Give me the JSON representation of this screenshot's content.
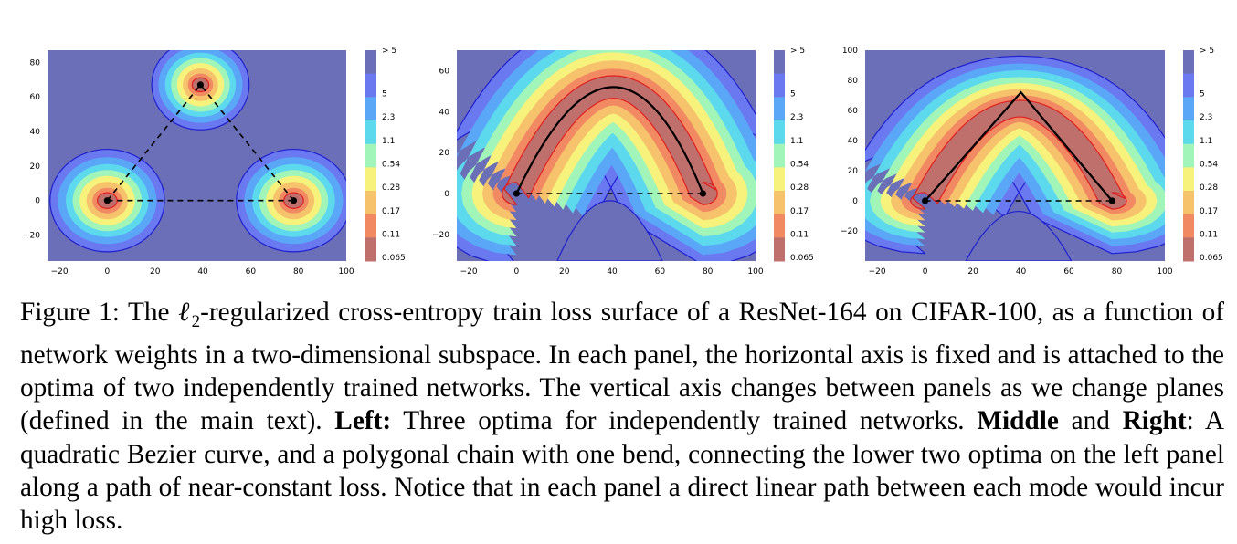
{
  "figure": {
    "caption": {
      "label": "Figure 1:",
      "part1": "The",
      "ell": "ℓ",
      "sub": "2",
      "part2": "-regularized cross-entropy train loss surface of a ResNet-164 on CIFAR-100, as a function of network weights in a two-dimensional subspace. In each panel, the horizontal axis is fixed and is attached to the optima of two independently trained networks. The vertical axis changes between panels as we change planes (defined in the main text).",
      "left_label": "Left:",
      "left_text": "Three optima for independently trained networks.",
      "middle_label": "Middle",
      "and": "and",
      "right_label": "Right",
      "right_text": ": A quadratic Bezier curve, and a polygonal chain with one bend, connecting the lower two optima on the left panel along a path of near-constant loss. Notice that in each panel a direct linear path between each mode would incur high loss."
    }
  },
  "chart_data": [
    {
      "type": "heatmap",
      "panel": "left",
      "xticks": [
        -20,
        0,
        20,
        40,
        60,
        80,
        100
      ],
      "yticks": [
        -20,
        0,
        20,
        40,
        60,
        80
      ],
      "xlim": [
        -25,
        100
      ],
      "ylim": [
        -35,
        87
      ],
      "colorbar_labels": [
        "> 5",
        "5",
        "2.3",
        "1.1",
        "0.54",
        "0.28",
        "0.17",
        "0.11",
        "0.065"
      ],
      "optima": [
        [
          0,
          0
        ],
        [
          78,
          0
        ],
        [
          39,
          67
        ]
      ],
      "paths": [
        {
          "style": "dashed",
          "points": [
            [
              0,
              0
            ],
            [
              78,
              0
            ]
          ]
        },
        {
          "style": "dashed",
          "points": [
            [
              0,
              0
            ],
            [
              39,
              67
            ]
          ]
        },
        {
          "style": "dashed",
          "points": [
            [
              78,
              0
            ],
            [
              39,
              67
            ]
          ]
        }
      ]
    },
    {
      "type": "heatmap",
      "panel": "middle",
      "xticks": [
        -20,
        0,
        20,
        40,
        60,
        80,
        100
      ],
      "yticks": [
        -20,
        0,
        20,
        40,
        60
      ],
      "xlim": [
        -25,
        100
      ],
      "ylim": [
        -33,
        70
      ],
      "colorbar_labels": [
        "> 5",
        "5",
        "2.3",
        "1.1",
        "0.54",
        "0.28",
        "0.17",
        "0.11",
        "0.065"
      ],
      "optima": [
        [
          0,
          0
        ],
        [
          78,
          0
        ]
      ],
      "paths": [
        {
          "style": "dashed",
          "points": [
            [
              0,
              0
            ],
            [
              78,
              0
            ]
          ]
        },
        {
          "style": "solid",
          "curve": "quadratic-bezier",
          "points": [
            [
              0,
              0
            ],
            [
              42,
              52
            ],
            [
              78,
              0
            ]
          ]
        }
      ]
    },
    {
      "type": "heatmap",
      "panel": "right",
      "xticks": [
        -20,
        0,
        20,
        40,
        60,
        80,
        100
      ],
      "yticks": [
        -20,
        0,
        20,
        40,
        60,
        80,
        100
      ],
      "xlim": [
        -25,
        100
      ],
      "ylim": [
        -40,
        100
      ],
      "colorbar_labels": [
        "> 5",
        "5",
        "2.3",
        "1.1",
        "0.54",
        "0.28",
        "0.17",
        "0.11",
        "0.065"
      ],
      "optima": [
        [
          0,
          0
        ],
        [
          78,
          0
        ]
      ],
      "paths": [
        {
          "style": "dashed",
          "points": [
            [
              0,
              0
            ],
            [
              78,
              0
            ]
          ]
        },
        {
          "style": "solid",
          "curve": "polygonal-chain",
          "points": [
            [
              0,
              0
            ],
            [
              40,
              72
            ],
            [
              78,
              0
            ]
          ]
        }
      ]
    }
  ],
  "colors": {
    "levels": [
      "#6b6fb8",
      "#6b79f0",
      "#5aa7f7",
      "#5dd9ee",
      "#a2f5b8",
      "#f7f27c",
      "#f6c26b",
      "#f18a63",
      "#bf6f6c"
    ],
    "contour_low": "#e02020",
    "contour_high": "#1f1fd0"
  }
}
